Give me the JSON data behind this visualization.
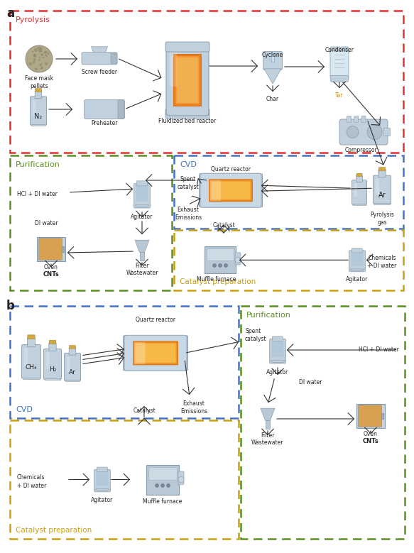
{
  "bg_color": "#ffffff",
  "pyrolysis_color": "#e03030",
  "cvd_color": "#4472c4",
  "purification_color": "#5a9020",
  "catalyst_color": "#c8a010",
  "equip_body": "#c0d0dc",
  "equip_edge": "#8899aa",
  "glow_outer": "#e07818",
  "glow_inner": "#f5b040",
  "text_dark": "#222222",
  "tar_color": "#c89010",
  "arrow_col": "#333333"
}
